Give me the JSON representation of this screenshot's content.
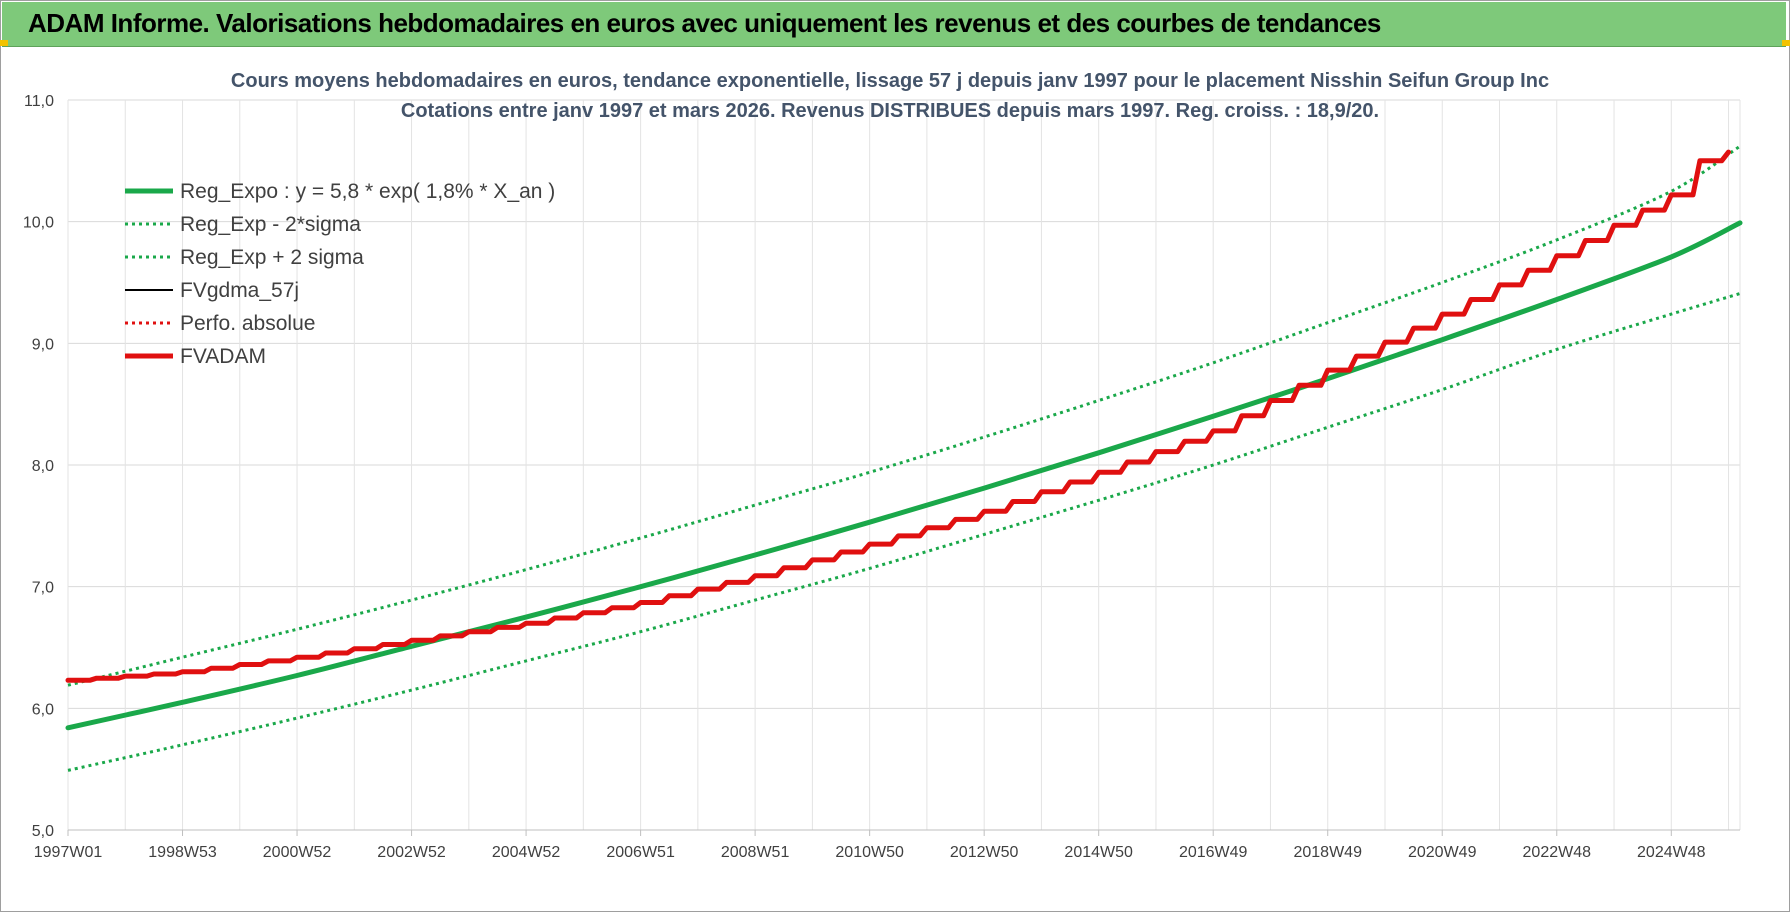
{
  "banner": {
    "title": "ADAM Informe. Valorisations hebdomadaires en euros avec uniquement les revenus et des courbes de tendances"
  },
  "chart_data": {
    "type": "line",
    "title": "Cours moyens hebdomadaires en euros, tendance exponentielle, lissage 57 j depuis janv 1997  pour le placement Nisshin Seifun Group Inc",
    "subtitle": "Cotations entre janv 1997 et mars 2026. Revenus DISTRIBUES depuis mars 1997. Reg. croiss. : 18,9/20.",
    "xlabel": "",
    "ylabel": "",
    "x_tick_labels": [
      "1997W01",
      "1998W53",
      "2000W52",
      "2002W52",
      "2004W52",
      "2006W51",
      "2008W51",
      "2010W50",
      "2012W50",
      "2014W50",
      "2016W49",
      "2018W49",
      "2020W49",
      "2022W48",
      "2024W48"
    ],
    "y_tick_labels": [
      "5,0",
      "6,0",
      "7,0",
      "8,0",
      "9,0",
      "10,0",
      "11,0"
    ],
    "xlim": [
      1997.0,
      2026.2
    ],
    "ylim": [
      5.0,
      11.0
    ],
    "grid": true,
    "legend_position": "top-left",
    "series": [
      {
        "name": "Reg_Expo : y = 5,8 * exp( 1,8% *  X_an )",
        "color": "#1aa84a",
        "style": "solid-thick",
        "x": [
          1997.0,
          1999.0,
          2001.0,
          2003.0,
          2005.0,
          2007.0,
          2009.0,
          2011.0,
          2013.0,
          2015.0,
          2017.0,
          2019.0,
          2021.0,
          2023.0,
          2025.0,
          2026.2
        ],
        "y": [
          5.84,
          6.05,
          6.27,
          6.51,
          6.75,
          7.0,
          7.26,
          7.53,
          7.81,
          8.1,
          8.4,
          8.71,
          9.03,
          9.36,
          9.71,
          9.99
        ]
      },
      {
        "name": "Reg_Exp - 2*sigma",
        "color": "#1aa84a",
        "style": "dotted",
        "x": [
          1997.0,
          1999.0,
          2001.0,
          2003.0,
          2005.0,
          2007.0,
          2009.0,
          2011.0,
          2013.0,
          2015.0,
          2017.0,
          2019.0,
          2021.0,
          2023.0,
          2025.0,
          2026.2
        ],
        "y": [
          5.49,
          5.7,
          5.92,
          6.15,
          6.39,
          6.63,
          6.89,
          7.15,
          7.43,
          7.71,
          8.0,
          8.31,
          8.62,
          8.95,
          9.24,
          9.41
        ]
      },
      {
        "name": "Reg_Exp + 2 sigma",
        "color": "#1aa84a",
        "style": "dotted",
        "x": [
          1997.0,
          1999.0,
          2001.0,
          2003.0,
          2005.0,
          2007.0,
          2009.0,
          2011.0,
          2013.0,
          2015.0,
          2017.0,
          2019.0,
          2021.0,
          2023.0,
          2025.0,
          2026.2
        ],
        "y": [
          6.19,
          6.42,
          6.65,
          6.89,
          7.14,
          7.4,
          7.67,
          7.94,
          8.23,
          8.53,
          8.84,
          9.17,
          9.5,
          9.85,
          10.25,
          10.62
        ]
      },
      {
        "name": "FVgdma_57j",
        "color": "#000000",
        "style": "solid-thin",
        "x": [
          1997.0,
          1999.0,
          2001.0,
          2003.0,
          2005.0,
          2007.0,
          2009.0,
          2011.0,
          2013.0,
          2015.0,
          2017.0,
          2019.0,
          2021.0,
          2023.0,
          2025.0,
          2025.5,
          2026.2
        ],
        "y": [
          6.23,
          6.3,
          6.42,
          6.56,
          6.7,
          6.87,
          7.09,
          7.35,
          7.62,
          7.94,
          8.28,
          8.78,
          9.24,
          9.72,
          10.22,
          10.5,
          10.6
        ]
      },
      {
        "name": "Perfo. absolue",
        "color": "#e01010",
        "style": "dotted",
        "x": [
          1997.0,
          1999.0,
          2001.0,
          2003.0,
          2005.0,
          2007.0,
          2009.0,
          2011.0,
          2013.0,
          2015.0,
          2017.0,
          2019.0,
          2021.0,
          2023.0,
          2025.0,
          2025.5,
          2026.2
        ],
        "y": [
          6.23,
          6.3,
          6.42,
          6.56,
          6.7,
          6.87,
          7.09,
          7.35,
          7.62,
          7.94,
          8.28,
          8.78,
          9.24,
          9.72,
          10.22,
          10.5,
          10.6
        ]
      },
      {
        "name": "FVADAM",
        "color": "#e01010",
        "style": "solid-thick",
        "x": [
          1997.0,
          1999.0,
          2001.0,
          2003.0,
          2005.0,
          2007.0,
          2009.0,
          2011.0,
          2013.0,
          2015.0,
          2017.0,
          2019.0,
          2021.0,
          2023.0,
          2025.0,
          2025.5,
          2026.2
        ],
        "y": [
          6.23,
          6.3,
          6.42,
          6.56,
          6.7,
          6.87,
          7.09,
          7.35,
          7.62,
          7.94,
          8.28,
          8.78,
          9.24,
          9.72,
          10.22,
          10.5,
          10.6
        ]
      }
    ]
  }
}
